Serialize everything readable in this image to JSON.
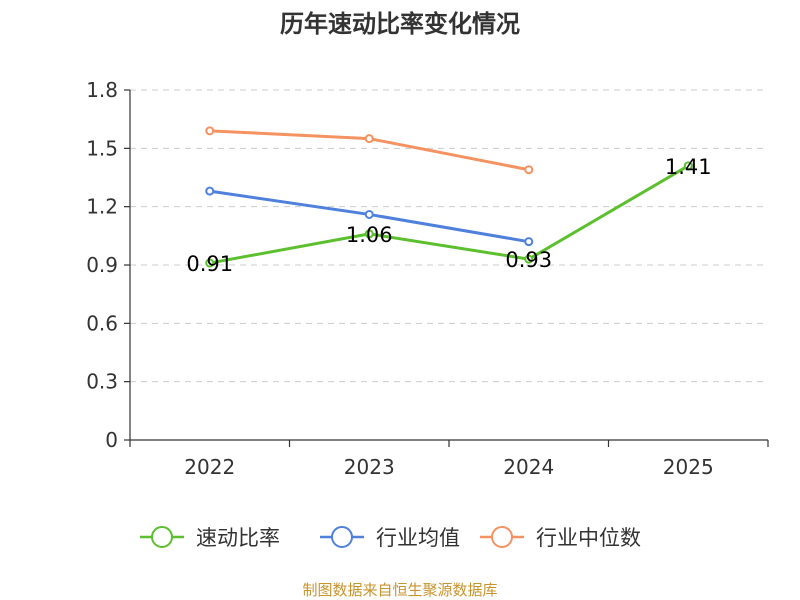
{
  "chart_data": {
    "type": "line",
    "title": "历年速动比率变化情况",
    "categories": [
      "2022",
      "2023",
      "2024",
      "2025"
    ],
    "y_ticks": [
      "0",
      "0.3",
      "0.6",
      "0.9",
      "1.2",
      "1.5",
      "1.8"
    ],
    "ylim": [
      0,
      1.8
    ],
    "grid": true,
    "legend_position": "bottom",
    "series": [
      {
        "name": "速动比率",
        "color": "#5cc02e",
        "values": [
          0.91,
          1.06,
          0.93,
          1.41
        ],
        "labels": [
          "0.91",
          "1.06",
          "0.93",
          "1.41"
        ]
      },
      {
        "name": "行业均值",
        "color": "#4e80dc",
        "values": [
          1.28,
          1.16,
          1.02,
          null
        ]
      },
      {
        "name": "行业中位数",
        "color": "#f59261",
        "values": [
          1.59,
          1.55,
          1.39,
          null
        ]
      }
    ],
    "source": "制图数据来自恒生聚源数据库"
  }
}
